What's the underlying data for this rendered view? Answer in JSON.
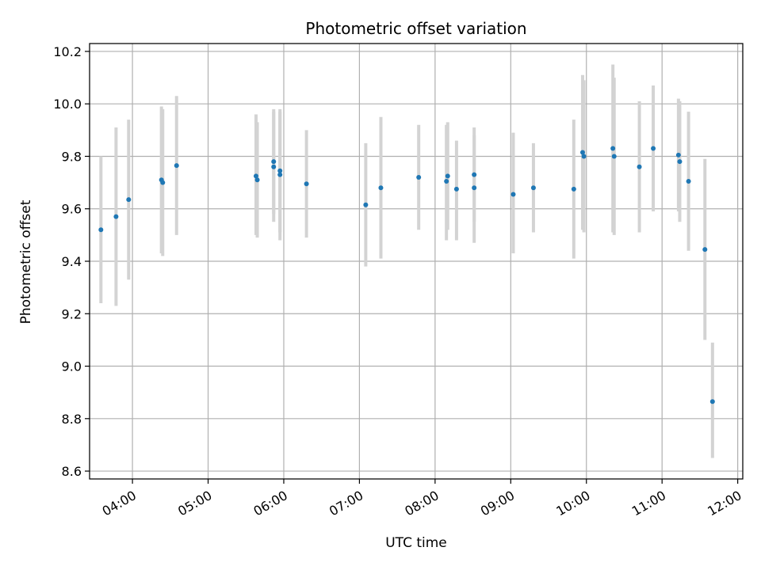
{
  "chart_data": {
    "type": "scatter",
    "title": "Photometric offset variation",
    "xlabel": "UTC time",
    "ylabel": "Photometric offset",
    "x_ticks": [
      "04:00",
      "05:00",
      "06:00",
      "07:00",
      "08:00",
      "09:00",
      "10:00",
      "11:00",
      "12:00"
    ],
    "y_ticks": [
      "8.6",
      "8.8",
      "9.0",
      "9.2",
      "9.4",
      "9.6",
      "9.8",
      "10.0",
      "10.2"
    ],
    "xlim": [
      "03:26",
      "12:04"
    ],
    "ylim": [
      8.57,
      10.23
    ],
    "grid": true,
    "colors": {
      "point": "#1f77b4",
      "errorbar": "#d3d3d3",
      "grid": "#b0b0b0"
    },
    "points": [
      {
        "x": "03:35",
        "y": 9.52,
        "y_low": 9.24,
        "y_high": 9.8
      },
      {
        "x": "03:47",
        "y": 9.57,
        "y_low": 9.23,
        "y_high": 9.91
      },
      {
        "x": "03:57",
        "y": 9.635,
        "y_low": 9.33,
        "y_high": 9.94
      },
      {
        "x": "04:23",
        "y": 9.71,
        "y_low": 9.43,
        "y_high": 9.99
      },
      {
        "x": "04:24",
        "y": 9.7,
        "y_low": 9.42,
        "y_high": 9.98
      },
      {
        "x": "04:35",
        "y": 9.765,
        "y_low": 9.5,
        "y_high": 10.03
      },
      {
        "x": "05:38",
        "y": 9.725,
        "y_low": 9.5,
        "y_high": 9.96
      },
      {
        "x": "05:39",
        "y": 9.71,
        "y_low": 9.49,
        "y_high": 9.93
      },
      {
        "x": "05:52",
        "y": 9.78,
        "y_low": 9.58,
        "y_high": 9.98
      },
      {
        "x": "05:52",
        "y": 9.76,
        "y_low": 9.55,
        "y_high": 9.97
      },
      {
        "x": "05:57",
        "y": 9.745,
        "y_low": 9.51,
        "y_high": 9.98
      },
      {
        "x": "05:57",
        "y": 9.73,
        "y_low": 9.48,
        "y_high": 9.97
      },
      {
        "x": "06:18",
        "y": 9.695,
        "y_low": 9.49,
        "y_high": 9.9
      },
      {
        "x": "07:05",
        "y": 9.615,
        "y_low": 9.38,
        "y_high": 9.85
      },
      {
        "x": "07:17",
        "y": 9.68,
        "y_low": 9.41,
        "y_high": 9.95
      },
      {
        "x": "07:47",
        "y": 9.72,
        "y_low": 9.52,
        "y_high": 9.92
      },
      {
        "x": "08:10",
        "y": 9.725,
        "y_low": 9.52,
        "y_high": 9.93
      },
      {
        "x": "08:09",
        "y": 9.705,
        "y_low": 9.48,
        "y_high": 9.92
      },
      {
        "x": "08:17",
        "y": 9.675,
        "y_low": 9.48,
        "y_high": 9.86
      },
      {
        "x": "08:31",
        "y": 9.73,
        "y_low": 9.55,
        "y_high": 9.91
      },
      {
        "x": "08:31",
        "y": 9.68,
        "y_low": 9.47,
        "y_high": 9.88
      },
      {
        "x": "09:02",
        "y": 9.655,
        "y_low": 9.43,
        "y_high": 9.89
      },
      {
        "x": "09:18",
        "y": 9.68,
        "y_low": 9.51,
        "y_high": 9.85
      },
      {
        "x": "09:50",
        "y": 9.675,
        "y_low": 9.41,
        "y_high": 9.94
      },
      {
        "x": "09:57",
        "y": 9.815,
        "y_low": 9.52,
        "y_high": 10.11
      },
      {
        "x": "09:58",
        "y": 9.8,
        "y_low": 9.51,
        "y_high": 10.09
      },
      {
        "x": "10:21",
        "y": 9.83,
        "y_low": 9.51,
        "y_high": 10.15
      },
      {
        "x": "10:22",
        "y": 9.8,
        "y_low": 9.5,
        "y_high": 10.1
      },
      {
        "x": "10:42",
        "y": 9.76,
        "y_low": 9.51,
        "y_high": 10.01
      },
      {
        "x": "10:53",
        "y": 9.83,
        "y_low": 9.59,
        "y_high": 10.07
      },
      {
        "x": "11:13",
        "y": 9.805,
        "y_low": 9.59,
        "y_high": 10.02
      },
      {
        "x": "11:14",
        "y": 9.78,
        "y_low": 9.55,
        "y_high": 10.01
      },
      {
        "x": "11:21",
        "y": 9.705,
        "y_low": 9.44,
        "y_high": 9.97
      },
      {
        "x": "11:34",
        "y": 9.445,
        "y_low": 9.1,
        "y_high": 9.79
      },
      {
        "x": "11:40",
        "y": 8.865,
        "y_low": 8.65,
        "y_high": 9.09
      }
    ]
  }
}
